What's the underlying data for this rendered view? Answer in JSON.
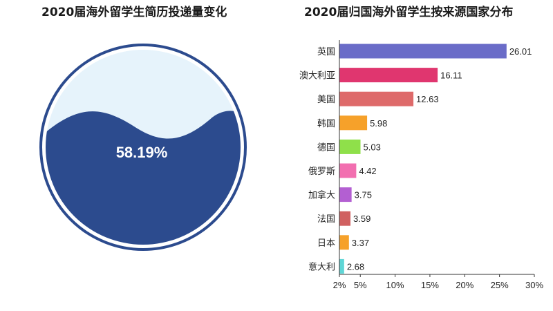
{
  "chart_data": [
    {
      "type": "gauge",
      "title": "2020届海外留学生简历投递量变化",
      "value": 58.19,
      "label": "58.19%",
      "colors": {
        "fill": "#2c4b8e",
        "background": "#e6f3fb",
        "ring": "#2c4b8e"
      }
    },
    {
      "type": "bar",
      "orientation": "horizontal",
      "title": "2020届归国海外留学生按来源国家分布",
      "categories": [
        "英国",
        "澳大利亚",
        "美国",
        "韩国",
        "德国",
        "俄罗斯",
        "加拿大",
        "法国",
        "日本",
        "意大利"
      ],
      "values": [
        26.01,
        16.11,
        12.63,
        5.98,
        5.03,
        4.42,
        3.75,
        3.59,
        3.37,
        2.68
      ],
      "value_labels": [
        "26.01",
        "16.11",
        "12.63",
        "5.98",
        "5.03",
        "4.42",
        "3.75",
        "3.59",
        "3.37",
        "2.68"
      ],
      "colors": [
        "#6a6cc8",
        "#e0366f",
        "#de6a6a",
        "#f6a12a",
        "#8fe04a",
        "#f26fb0",
        "#b35fd2",
        "#d06060",
        "#f6a12a",
        "#5fd6d6"
      ],
      "xlim": [
        2,
        30
      ],
      "xticks": [
        2,
        5,
        10,
        15,
        20,
        25,
        30
      ],
      "xtick_labels": [
        "2%",
        "5%",
        "10%",
        "15%",
        "20%",
        "25%",
        "30%"
      ],
      "xlabel": "",
      "ylabel": "",
      "grid": false
    }
  ]
}
